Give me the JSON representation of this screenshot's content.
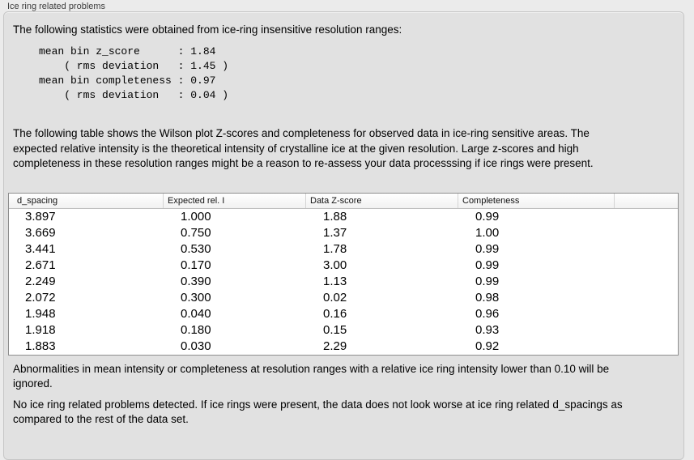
{
  "panel": {
    "title": "Ice ring related problems"
  },
  "intro": "The following statistics were obtained from ice-ring insensitive resolution ranges:",
  "stats_block": "mean bin z_score      : 1.84\n    ( rms deviation   : 1.45 )\nmean bin completeness : 0.97\n    ( rms deviation   : 0.04 )",
  "description": "The following table shows the Wilson plot Z-scores and completeness for observed data in ice-ring sensitive areas. The expected relative intensity is the theoretical intensity of crystalline ice at the given resolution. Large z-scores and high completeness in these resolution ranges might be a reason to re-assess your data processsing if ice rings were present.",
  "table": {
    "columns": [
      "d_spacing",
      "Expected rel. I",
      "Data Z-score",
      "Completeness"
    ],
    "rows": [
      [
        "3.897",
        "1.000",
        "1.88",
        "0.99"
      ],
      [
        "3.669",
        "0.750",
        "1.37",
        "1.00"
      ],
      [
        "3.441",
        "0.530",
        "1.78",
        "0.99"
      ],
      [
        "2.671",
        "0.170",
        "3.00",
        "0.99"
      ],
      [
        "2.249",
        "0.390",
        "1.13",
        "0.99"
      ],
      [
        "2.072",
        "0.300",
        "0.02",
        "0.98"
      ],
      [
        "1.948",
        "0.040",
        "0.16",
        "0.96"
      ],
      [
        "1.918",
        "0.180",
        "0.15",
        "0.93"
      ],
      [
        "1.883",
        "0.030",
        "2.29",
        "0.92"
      ]
    ]
  },
  "notes": [
    "Abnormalities in mean intensity or completeness at resolution ranges with a relative ice ring intensity lower than 0.10 will be ignored.",
    "No ice ring related problems detected. If ice rings were present, the data does not look worse at ice ring related d_spacings as compared to the rest of the data set."
  ],
  "colors": {
    "panel_background": "#e1e1e1",
    "window_background": "#ebebeb",
    "table_background": "#ffffff",
    "table_border": "#8e8e8e",
    "text": "#000000"
  }
}
